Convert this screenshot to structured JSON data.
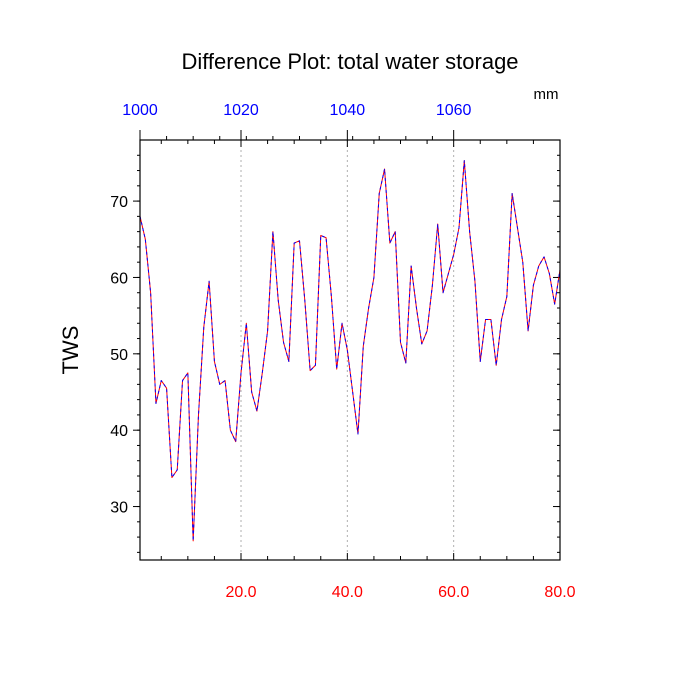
{
  "chart_data": {
    "type": "line",
    "title": "Difference Plot: total water storage",
    "ylabel": "TWS",
    "top_axis_unit": "mm",
    "xlim": [
      1,
      80
    ],
    "ylim": [
      23,
      78
    ],
    "bottom_ticks": [
      {
        "value": 20,
        "label": "20.0"
      },
      {
        "value": 40,
        "label": "40.0"
      },
      {
        "value": 60,
        "label": "60.0"
      },
      {
        "value": 80,
        "label": "80.0"
      }
    ],
    "top_ticks": [
      {
        "value": 1,
        "label": "1000"
      },
      {
        "value": 20,
        "label": "1020"
      },
      {
        "value": 40,
        "label": "1040"
      },
      {
        "value": 60,
        "label": "1060"
      }
    ],
    "left_ticks": [
      {
        "value": 30,
        "label": "30"
      },
      {
        "value": 40,
        "label": "40"
      },
      {
        "value": 50,
        "label": "50"
      },
      {
        "value": 60,
        "label": "60"
      },
      {
        "value": 70,
        "label": "70"
      }
    ],
    "vertical_gridlines_at": [
      20,
      40,
      60
    ],
    "colors": {
      "bottom_tick_labels": "#ff0000",
      "top_tick_labels": "#0000ff",
      "series_1": "#ff0000",
      "series_2": "#0000ff",
      "gridline": "#b0b0b0"
    },
    "series": [
      {
        "name": "series-red",
        "values": [
          68,
          65,
          58,
          43.5,
          46.5,
          45.5,
          33.8,
          34.8,
          46.5,
          47.5,
          25.5,
          42,
          53.5,
          59.5,
          49,
          46,
          46.5,
          40,
          38.5,
          47.5,
          54,
          45,
          42.5,
          47.5,
          53,
          66,
          57,
          51.5,
          49,
          64.5,
          64.8,
          57,
          47.8,
          48.5,
          65.5,
          65.2,
          57.5,
          48,
          54,
          50.5,
          45,
          39.5,
          51,
          56,
          60,
          71,
          74.2,
          64.5,
          66,
          51.5,
          48.8,
          61.5,
          56,
          51.3,
          53,
          59,
          67,
          58,
          60.5,
          63,
          66.5,
          75.3,
          66,
          59.5,
          49,
          54.5,
          54.5,
          48.5,
          54.5,
          57.5,
          71,
          66.5,
          62,
          53,
          59,
          61.5,
          62.7,
          60.5,
          56.5,
          61
        ]
      },
      {
        "name": "series-blue",
        "values": [
          68,
          65,
          58,
          43.5,
          46.5,
          45.5,
          33.8,
          34.8,
          46.5,
          47.5,
          25.5,
          42,
          53.5,
          59.5,
          49,
          46,
          46.5,
          40,
          38.5,
          47.5,
          54,
          45,
          42.5,
          47.5,
          53,
          66,
          57,
          51.5,
          49,
          64.5,
          64.8,
          57,
          47.8,
          48.5,
          65.5,
          65.2,
          57.5,
          48,
          54,
          50.5,
          45,
          39.5,
          51,
          56,
          60,
          71,
          74.2,
          64.5,
          66,
          51.5,
          48.8,
          61.5,
          56,
          51.3,
          53,
          59,
          67,
          58,
          60.5,
          63,
          66.5,
          75.3,
          66,
          59.5,
          49,
          54.5,
          54.5,
          48.5,
          54.5,
          57.5,
          71,
          66.5,
          62,
          53,
          59,
          61.5,
          62.7,
          60.5,
          56.5,
          61
        ]
      }
    ]
  }
}
